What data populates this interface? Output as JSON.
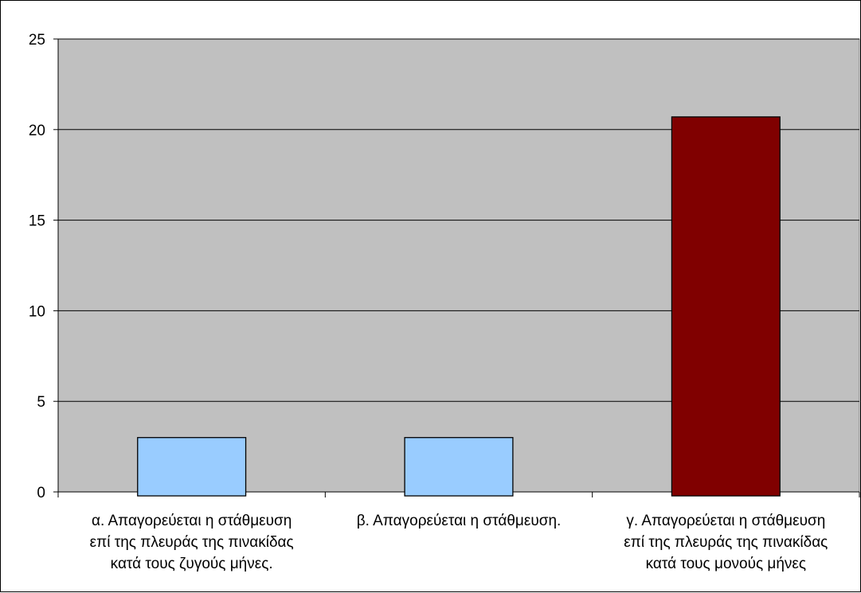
{
  "chart_data": {
    "type": "bar",
    "title": "",
    "xlabel": "",
    "ylabel": "",
    "ylim": [
      0,
      25
    ],
    "yticks": [
      0,
      5,
      10,
      15,
      20,
      25
    ],
    "grid": true,
    "legend": "none",
    "categories": [
      "α. Απαγορεύεται η στάθμευση\nεπί της πλευράς της πινακίδας\nκατά τους ζυγούς μήνες.",
      "β. Απαγορεύεται η στάθμευση.",
      "γ. Απαγορεύεται η στάθμευση\nεπί της πλευράς της πινακίδας\nκατά τους  μονούς μήνες"
    ],
    "values": [
      3,
      3,
      20.7
    ],
    "colors": [
      "#99ccff",
      "#99ccff",
      "#800000"
    ],
    "plot_background": "#c0c0c0"
  }
}
